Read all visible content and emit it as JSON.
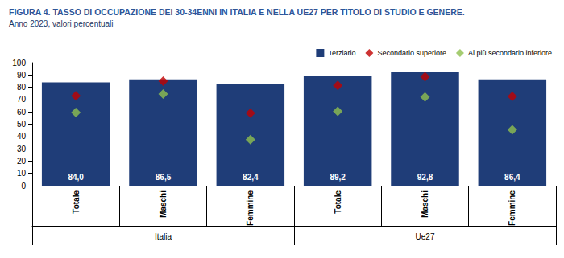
{
  "chart_data": {
    "type": "bar",
    "title": "FIGURA 4. TASSO DI OCCUPAZIONE DEI 30-34ENNI IN ITALIA E NELLA UE27 PER TITOLO DI STUDIO E GENERE.",
    "subtitle": "Anno 2023, valori percentuali",
    "categories": [
      "Totale",
      "Maschi",
      "Femmine",
      "Totale",
      "Maschi",
      "Femmine"
    ],
    "groups": [
      "Italia",
      "Italia",
      "Italia",
      "Ue27",
      "Ue27",
      "Ue27"
    ],
    "series": [
      {
        "name": "Terziario",
        "type": "bar",
        "color": "#1f3d78",
        "values": [
          84.0,
          86.5,
          82.4,
          89.2,
          92.8,
          86.4
        ],
        "value_labels": [
          "84,0",
          "86,5",
          "82,4",
          "89,2",
          "92,8",
          "86,4"
        ],
        "data_labels": true
      },
      {
        "name": "Secondario superiore",
        "type": "scatter",
        "marker": "diamond",
        "color": "#c00000",
        "values": [
          73,
          85,
          59,
          81.5,
          88.5,
          72.5
        ]
      },
      {
        "name": "Al più secondario inferiore",
        "type": "scatter",
        "marker": "diamond",
        "color": "#8fbf4f",
        "values": [
          59.5,
          74.5,
          37.5,
          60.5,
          72,
          45.5
        ]
      }
    ],
    "ylim": [
      0,
      100
    ],
    "yticks": [
      0,
      10,
      20,
      30,
      40,
      50,
      60,
      70,
      80,
      90,
      100
    ],
    "grid": false,
    "legend": "upper right"
  }
}
